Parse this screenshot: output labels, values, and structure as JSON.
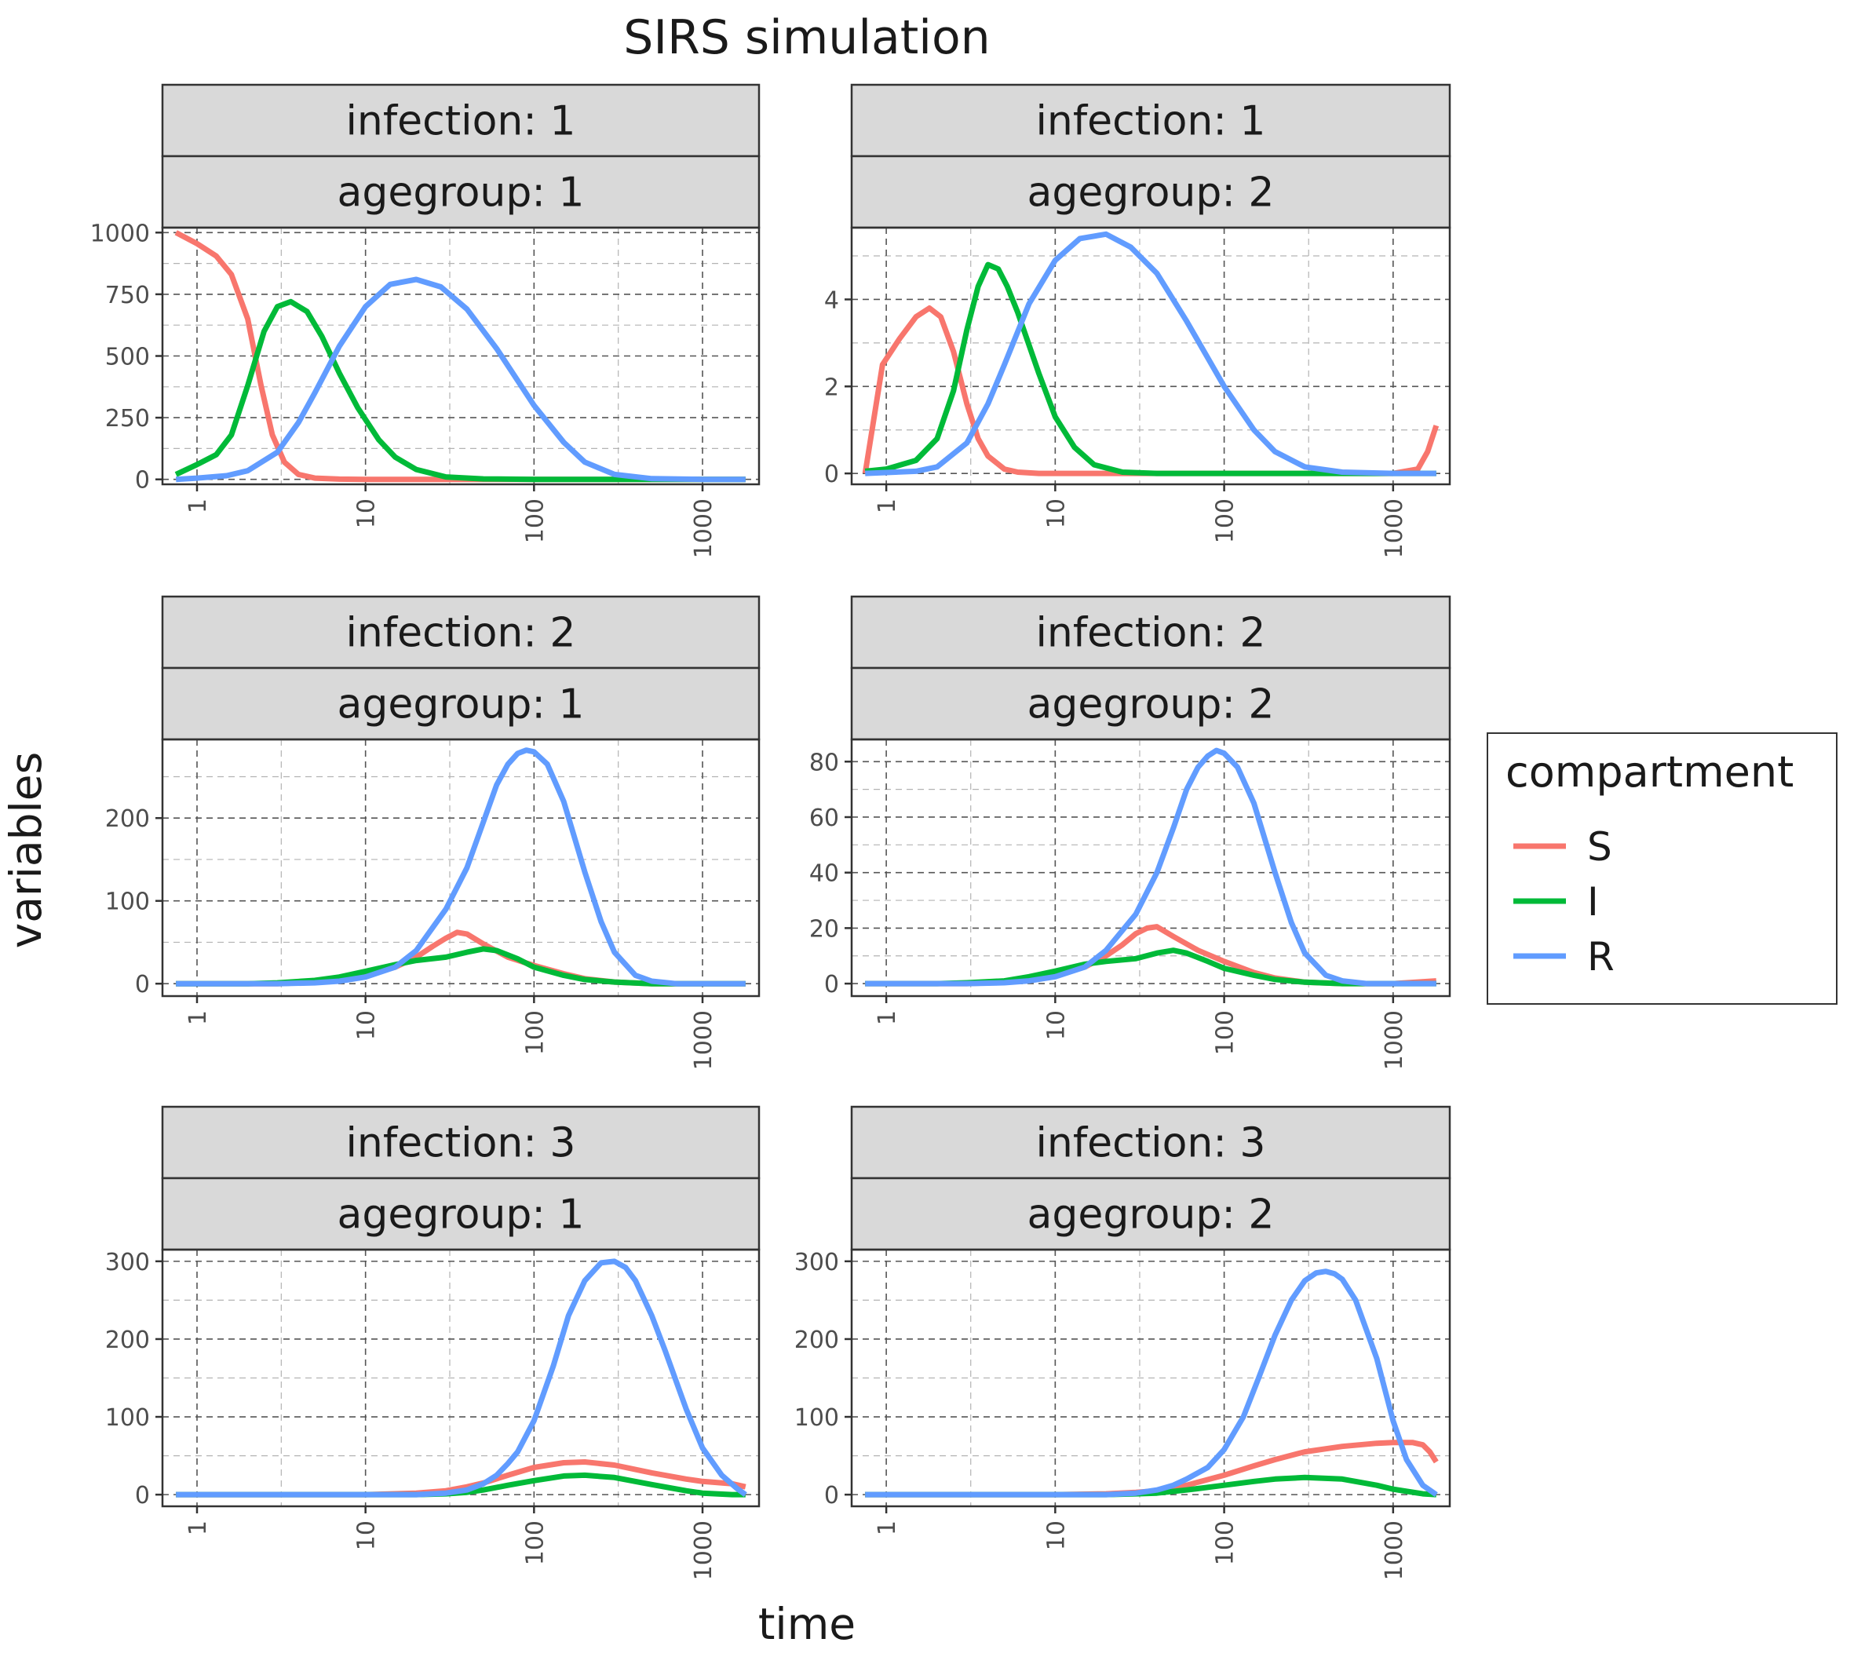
{
  "chart_data": {
    "type": "line",
    "title": "SIRS simulation",
    "xlabel": "time",
    "ylabel": "variables",
    "x_scale": "log10",
    "x_range": [
      0.75,
      1800
    ],
    "x_ticks": [
      1,
      10,
      100,
      1000
    ],
    "x_tick_labels": [
      "1",
      "10",
      "100",
      "1000"
    ],
    "grid": true,
    "legend": {
      "title": "compartment",
      "position": "right",
      "entries": [
        "S",
        "I",
        "R"
      ]
    },
    "colors": {
      "S": "#F8766D",
      "I": "#00BA38",
      "R": "#619CFF"
    },
    "panels": [
      {
        "strip_top": "infection: 1",
        "strip_bottom": "agegroup: 1",
        "ylim": [
          -20,
          1020
        ],
        "y_ticks": [
          0,
          250,
          500,
          750,
          1000
        ],
        "y_tick_labels": [
          "0",
          "250",
          "500",
          "750",
          "1000"
        ],
        "series": [
          {
            "name": "S",
            "x": [
              0.75,
              1,
              1.3,
              1.6,
              2,
              2.4,
              2.8,
              3.3,
              4,
              5,
              7,
              10,
              30,
              100,
              1000,
              1800
            ],
            "values": [
              1000,
              955,
              905,
              830,
              650,
              380,
              180,
              70,
              20,
              5,
              1,
              0,
              0,
              0,
              0,
              0
            ]
          },
          {
            "name": "I",
            "x": [
              0.75,
              1,
              1.3,
              1.6,
              2,
              2.5,
              3,
              3.6,
              4.5,
              5.5,
              7,
              9,
              12,
              15,
              20,
              30,
              50,
              100,
              1000,
              1800
            ],
            "values": [
              20,
              60,
              100,
              180,
              380,
              600,
              700,
              720,
              680,
              580,
              430,
              290,
              160,
              90,
              40,
              10,
              2,
              0,
              0,
              0
            ]
          },
          {
            "name": "R",
            "x": [
              0.75,
              1,
              1.5,
              2,
              3,
              4,
              5,
              7,
              10,
              14,
              20,
              28,
              40,
              60,
              100,
              150,
              200,
              300,
              500,
              1000,
              1800
            ],
            "values": [
              0,
              5,
              15,
              35,
              110,
              230,
              350,
              540,
              700,
              790,
              810,
              780,
              690,
              530,
              300,
              150,
              70,
              20,
              3,
              0,
              0
            ]
          }
        ]
      },
      {
        "strip_top": "infection: 1",
        "strip_bottom": "agegroup: 2",
        "ylim": [
          -0.25,
          5.65
        ],
        "y_ticks": [
          0,
          2,
          4
        ],
        "y_tick_labels": [
          "0",
          "2",
          "4"
        ],
        "series": [
          {
            "name": "S",
            "x": [
              0.75,
              0.95,
              1.2,
              1.5,
              1.8,
              2.1,
              2.5,
              3,
              3.5,
              4,
              5,
              6,
              8,
              10,
              20,
              100,
              1000,
              1400,
              1600,
              1800
            ],
            "values": [
              0,
              2.5,
              3.1,
              3.6,
              3.8,
              3.6,
              2.8,
              1.6,
              0.8,
              0.4,
              0.1,
              0.03,
              0,
              0,
              0,
              0,
              0,
              0.1,
              0.5,
              1.1
            ]
          },
          {
            "name": "I",
            "x": [
              0.75,
              1,
              1.5,
              2,
              2.5,
              3,
              3.5,
              4,
              4.6,
              5.2,
              6,
              8,
              10,
              13,
              17,
              25,
              40,
              100,
              1000,
              1800
            ],
            "values": [
              0.05,
              0.1,
              0.3,
              0.8,
              1.9,
              3.3,
              4.3,
              4.8,
              4.7,
              4.3,
              3.7,
              2.3,
              1.3,
              0.6,
              0.2,
              0.03,
              0,
              0,
              0,
              0
            ]
          },
          {
            "name": "R",
            "x": [
              0.75,
              1,
              1.5,
              2,
              3,
              4,
              5,
              7,
              10,
              14,
              20,
              28,
              40,
              60,
              100,
              150,
              200,
              300,
              500,
              1000,
              1800
            ],
            "values": [
              0,
              0.02,
              0.05,
              0.15,
              0.7,
              1.6,
              2.5,
              3.9,
              4.9,
              5.4,
              5.5,
              5.2,
              4.6,
              3.5,
              2.0,
              1.0,
              0.5,
              0.15,
              0.03,
              0,
              0
            ]
          }
        ]
      },
      {
        "strip_top": "infection: 2",
        "strip_bottom": "agegroup: 1",
        "ylim": [
          -15,
          295
        ],
        "y_ticks": [
          0,
          100,
          200
        ],
        "y_tick_labels": [
          "0",
          "100",
          "200"
        ],
        "series": [
          {
            "name": "S",
            "x": [
              0.75,
              3,
              5,
              7,
              10,
              15,
              20,
              25,
              30,
              35,
              40,
              50,
              70,
              100,
              150,
              200,
              300,
              500,
              1000,
              1800
            ],
            "values": [
              0,
              0,
              2,
              5,
              10,
              20,
              32,
              45,
              55,
              62,
              60,
              48,
              32,
              22,
              12,
              6,
              2,
              0,
              0,
              0
            ]
          },
          {
            "name": "I",
            "x": [
              0.75,
              2,
              3,
              5,
              7,
              10,
              15,
              20,
              30,
              40,
              50,
              60,
              80,
              100,
              150,
              200,
              300,
              500,
              1000,
              1800
            ],
            "values": [
              0,
              0,
              1,
              4,
              8,
              15,
              23,
              28,
              32,
              38,
              42,
              40,
              30,
              20,
              10,
              5,
              2,
              0,
              0,
              0
            ]
          },
          {
            "name": "R",
            "x": [
              0.75,
              3,
              5,
              7,
              10,
              15,
              20,
              30,
              40,
              50,
              60,
              70,
              80,
              90,
              100,
              120,
              150,
              200,
              250,
              300,
              400,
              500,
              700,
              1000,
              1800
            ],
            "values": [
              0,
              0,
              1,
              3,
              8,
              20,
              40,
              90,
              140,
              195,
              240,
              265,
              278,
              282,
              280,
              265,
              220,
              135,
              75,
              38,
              10,
              3,
              0,
              0,
              0
            ]
          }
        ]
      },
      {
        "strip_top": "infection: 2",
        "strip_bottom": "agegroup: 2",
        "ylim": [
          -4.5,
          88
        ],
        "y_ticks": [
          0,
          20,
          40,
          60,
          80
        ],
        "y_tick_labels": [
          "0",
          "20",
          "40",
          "60",
          "80"
        ],
        "series": [
          {
            "name": "S",
            "x": [
              0.75,
              3,
              5,
              7,
              10,
              15,
              20,
              25,
              30,
              35,
              40,
              50,
              70,
              100,
              150,
              200,
              300,
              500,
              1000,
              1800
            ],
            "values": [
              0,
              0,
              0.5,
              1.5,
              3,
              6,
              10,
              14,
              18,
              20,
              20.5,
              17,
              12,
              8,
              4,
              2,
              0.5,
              0,
              0,
              1
            ]
          },
          {
            "name": "I",
            "x": [
              0.75,
              2,
              3,
              5,
              7,
              10,
              15,
              20,
              30,
              40,
              50,
              60,
              80,
              100,
              150,
              200,
              300,
              500,
              1000,
              1800
            ],
            "values": [
              0,
              0,
              0.3,
              1,
              2.5,
              4.5,
              7,
              8,
              9,
              11,
              12,
              11,
              8,
              5.5,
              3,
              1.5,
              0.5,
              0,
              0,
              0
            ]
          },
          {
            "name": "R",
            "x": [
              0.75,
              3,
              5,
              7,
              10,
              15,
              20,
              30,
              40,
              50,
              60,
              70,
              80,
              90,
              100,
              120,
              150,
              200,
              250,
              300,
              400,
              500,
              700,
              1000,
              1800
            ],
            "values": [
              0,
              0,
              0.3,
              1,
              2.5,
              6,
              12,
              25,
              40,
              56,
              70,
              78,
              82,
              84,
              83,
              78,
              65,
              40,
              22,
              11,
              3,
              1,
              0,
              0,
              0
            ]
          }
        ]
      },
      {
        "strip_top": "infection: 3",
        "strip_bottom": "agegroup: 1",
        "ylim": [
          -15,
          315
        ],
        "y_ticks": [
          0,
          100,
          200,
          300
        ],
        "y_tick_labels": [
          "0",
          "100",
          "200",
          "300"
        ],
        "series": [
          {
            "name": "S",
            "x": [
              0.75,
              10,
              20,
              30,
              40,
              50,
              70,
              100,
              150,
              200,
              300,
              500,
              800,
              1000,
              1500,
              1800
            ],
            "values": [
              0,
              0,
              2,
              5,
              10,
              15,
              25,
              35,
              41,
              42,
              38,
              28,
              20,
              17,
              14,
              10
            ]
          },
          {
            "name": "I",
            "x": [
              0.75,
              10,
              20,
              30,
              40,
              50,
              70,
              100,
              150,
              200,
              300,
              500,
              800,
              1000,
              1500,
              1800
            ],
            "values": [
              0,
              0,
              0,
              1,
              3,
              6,
              12,
              18,
              24,
              25,
              22,
              13,
              5,
              2,
              0,
              0
            ]
          },
          {
            "name": "R",
            "x": [
              0.75,
              20,
              30,
              40,
              50,
              60,
              70,
              80,
              100,
              130,
              160,
              200,
              250,
              300,
              350,
              400,
              500,
              600,
              800,
              1000,
              1300,
              1600,
              1800
            ],
            "values": [
              0,
              0,
              2,
              6,
              14,
              25,
              40,
              55,
              95,
              165,
              230,
              275,
              298,
              300,
              292,
              275,
              230,
              185,
              110,
              60,
              25,
              8,
              0
            ]
          }
        ]
      },
      {
        "strip_top": "infection: 3",
        "strip_bottom": "agegroup: 2",
        "ylim": [
          -15,
          315
        ],
        "y_ticks": [
          0,
          100,
          200,
          300
        ],
        "y_tick_labels": [
          "0",
          "100",
          "200",
          "300"
        ],
        "series": [
          {
            "name": "S",
            "x": [
              0.75,
              10,
              20,
              30,
              40,
              60,
              100,
              150,
              200,
              300,
              500,
              800,
              1000,
              1300,
              1500,
              1650,
              1800
            ],
            "values": [
              0,
              0,
              1,
              3,
              5,
              12,
              25,
              37,
              45,
              55,
              62,
              66,
              67,
              67,
              64,
              55,
              42
            ]
          },
          {
            "name": "I",
            "x": [
              0.75,
              10,
              20,
              30,
              40,
              60,
              100,
              150,
              200,
              300,
              500,
              800,
              1000,
              1500,
              1800
            ],
            "values": [
              0,
              0,
              0,
              1,
              2,
              6,
              12,
              17,
              20,
              22,
              20,
              12,
              7,
              1,
              0
            ]
          },
          {
            "name": "R",
            "x": [
              0.75,
              20,
              30,
              40,
              50,
              60,
              80,
              100,
              130,
              160,
              200,
              250,
              300,
              350,
              400,
              450,
              500,
              600,
              800,
              1000,
              1200,
              1500,
              1800
            ],
            "values": [
              0,
              0,
              2,
              6,
              12,
              20,
              35,
              58,
              100,
              150,
              205,
              250,
              275,
              285,
              287,
              284,
              277,
              250,
              175,
              95,
              45,
              12,
              0
            ]
          }
        ]
      }
    ]
  }
}
